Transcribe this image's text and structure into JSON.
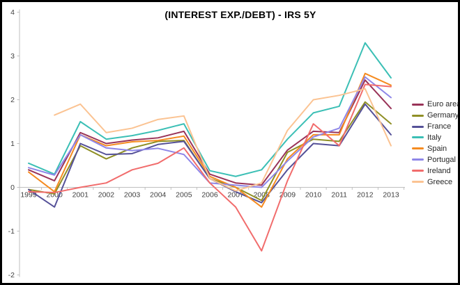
{
  "chart": {
    "title": "(INTEREST EXP./DEBT) - IRS 5Y"
  },
  "axis_colors": {
    "axis_line": "#bfbfbf",
    "tick_label": "#404040"
  },
  "chart_data": {
    "type": "line",
    "title": "(INTEREST EXP./DEBT) - IRS 5Y",
    "categories": [
      "1999",
      "2000",
      "2001",
      "2002",
      "2003",
      "2004",
      "2005",
      "2006",
      "2007",
      "2008",
      "2009",
      "2010",
      "2011",
      "2012",
      "2013"
    ],
    "ylim": [
      -2,
      4
    ],
    "yticks": [
      4,
      3,
      2,
      1,
      0,
      -1,
      -2
    ],
    "grid": false,
    "legend_position": "right",
    "series": [
      {
        "name": "Euro area",
        "color": "#993358",
        "values": [
          0.4,
          0.15,
          1.25,
          1.0,
          1.08,
          1.13,
          1.28,
          0.3,
          0.1,
          0.05,
          0.85,
          1.28,
          1.25,
          2.45,
          1.8
        ]
      },
      {
        "name": "Germany",
        "color": "#8f8f25",
        "values": [
          -0.05,
          -0.15,
          0.95,
          0.65,
          0.9,
          1.05,
          1.07,
          0.2,
          0.0,
          -0.3,
          0.8,
          1.1,
          1.05,
          1.95,
          1.45
        ]
      },
      {
        "name": "France",
        "color": "#555198",
        "values": [
          -0.05,
          -0.45,
          1.0,
          0.75,
          0.77,
          0.98,
          1.05,
          0.2,
          -0.1,
          -0.35,
          0.4,
          1.0,
          0.95,
          1.9,
          1.2
        ]
      },
      {
        "name": "Italy",
        "color": "#3bbfb5",
        "values": [
          0.55,
          0.3,
          1.5,
          1.1,
          1.18,
          1.3,
          1.45,
          0.38,
          0.25,
          0.4,
          1.1,
          1.7,
          1.85,
          3.3,
          2.5
        ]
      },
      {
        "name": "Spain",
        "color": "#f58b20",
        "values": [
          0.35,
          -0.1,
          1.2,
          0.95,
          1.04,
          1.07,
          1.17,
          0.25,
          0.0,
          -0.45,
          0.65,
          1.2,
          1.2,
          2.6,
          2.33
        ]
      },
      {
        "name": "Portugal",
        "color": "#8e86e8",
        "values": [
          0.45,
          0.28,
          1.2,
          0.9,
          0.84,
          0.89,
          0.75,
          0.1,
          0.05,
          0.0,
          0.6,
          1.15,
          1.35,
          2.52,
          2.05
        ]
      },
      {
        "name": "Ireland",
        "color": "#f16c6c",
        "values": [
          -0.1,
          -0.12,
          0.0,
          0.1,
          0.4,
          0.55,
          0.9,
          0.1,
          -0.45,
          -1.45,
          0.15,
          1.45,
          0.95,
          2.35,
          2.3
        ]
      },
      {
        "name": "Greece",
        "color": "#fbc392",
        "values": [
          null,
          1.65,
          1.9,
          1.25,
          1.35,
          1.55,
          1.63,
          0.2,
          -0.08,
          0.1,
          1.3,
          2.0,
          2.1,
          2.25,
          0.95
        ]
      }
    ]
  }
}
